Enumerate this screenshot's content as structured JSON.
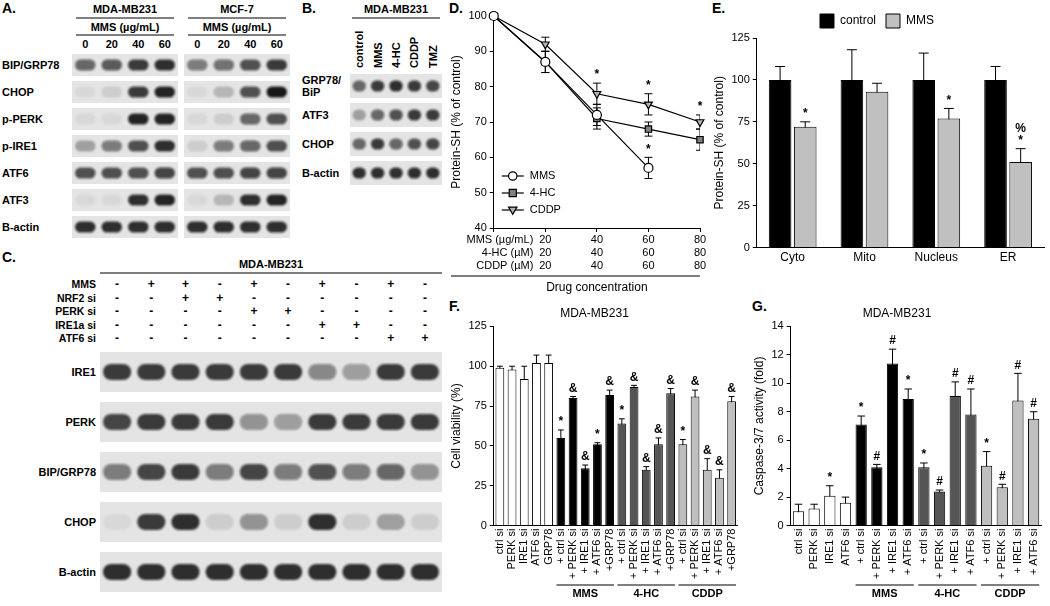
{
  "blots": [
    {
      "panel": "A.",
      "groups": [
        {
          "title": "MDA-MB231",
          "subtitle": "MMS (µg/mL)",
          "lanes": [
            "0",
            "20",
            "40",
            "60"
          ]
        },
        {
          "title": "MCF-7",
          "subtitle": "MMS (µg/mL)",
          "lanes": [
            "0",
            "20",
            "40",
            "60"
          ]
        }
      ],
      "rows": [
        {
          "name": "BIP/GRP78",
          "bands": [
            [
              0.6,
              0.65,
              0.8,
              0.85
            ],
            [
              0.5,
              0.55,
              0.7,
              0.8
            ]
          ]
        },
        {
          "name": "CHOP",
          "bands": [
            [
              0.05,
              0.1,
              0.8,
              0.9
            ],
            [
              0.05,
              0.2,
              0.7,
              0.95
            ]
          ]
        },
        {
          "name": "p-PERK",
          "bands": [
            [
              0.05,
              0.05,
              0.9,
              0.9
            ],
            [
              0.05,
              0.1,
              0.6,
              0.7
            ]
          ]
        },
        {
          "name": "p-IRE1",
          "bands": [
            [
              0.3,
              0.5,
              0.7,
              0.85
            ],
            [
              0.1,
              0.5,
              0.6,
              0.7
            ]
          ]
        },
        {
          "name": "ATF6",
          "bands": [
            [
              0.7,
              0.7,
              0.7,
              0.75
            ],
            [
              0.7,
              0.7,
              0.75,
              0.75
            ]
          ]
        },
        {
          "name": "ATF3",
          "bands": [
            [
              0.05,
              0.05,
              0.85,
              0.9
            ],
            [
              0.05,
              0.2,
              0.85,
              0.9
            ]
          ]
        },
        {
          "name": "B-actin",
          "bands": [
            [
              0.85,
              0.85,
              0.85,
              0.85
            ],
            [
              0.85,
              0.85,
              0.85,
              0.85
            ]
          ]
        }
      ]
    },
    {
      "panel": "B.",
      "title": "MDA-MB231",
      "lanes": [
        "control",
        "MMS",
        "4-HC",
        "CDDP",
        "TMZ"
      ],
      "rows": [
        {
          "name": "GRP78/BiP",
          "bands": [
            0.6,
            0.8,
            0.85,
            0.8,
            0.75
          ]
        },
        {
          "name": "ATF3",
          "bands": [
            0.3,
            0.6,
            0.7,
            0.8,
            0.8
          ]
        },
        {
          "name": "CHOP",
          "bands": [
            0.6,
            0.8,
            0.6,
            0.7,
            0.75
          ]
        },
        {
          "name": "B-actin",
          "bands": [
            0.85,
            0.85,
            0.85,
            0.85,
            0.85
          ]
        }
      ]
    },
    {
      "panel": "C.",
      "title": "MDA-MB231",
      "conditions": [
        {
          "name": "MMS",
          "marks": [
            "-",
            "+",
            "+",
            "-",
            "+",
            "-",
            "+",
            "-",
            "+",
            "-"
          ]
        },
        {
          "name": "NRF2 si",
          "marks": [
            "-",
            "-",
            "+",
            "+",
            "-",
            "-",
            "-",
            "-",
            "-",
            "-"
          ]
        },
        {
          "name": "PERK si",
          "marks": [
            "-",
            "-",
            "-",
            "-",
            "+",
            "+",
            "-",
            "-",
            "-",
            "-"
          ]
        },
        {
          "name": "IRE1a si",
          "marks": [
            "-",
            "-",
            "-",
            "-",
            "-",
            "-",
            "+",
            "+",
            "-",
            "-"
          ]
        },
        {
          "name": "ATF6 si",
          "marks": [
            "-",
            "-",
            "-",
            "-",
            "-",
            "-",
            "-",
            "-",
            "+",
            "+"
          ]
        }
      ],
      "rows": [
        {
          "name": "IRE1",
          "bands": [
            0.8,
            0.8,
            0.8,
            0.8,
            0.8,
            0.8,
            0.45,
            0.35,
            0.8,
            0.8
          ]
        },
        {
          "name": "PERK",
          "bands": [
            0.75,
            0.8,
            0.8,
            0.8,
            0.4,
            0.35,
            0.8,
            0.8,
            0.8,
            0.8
          ]
        },
        {
          "name": "BIP/GRP78",
          "bands": [
            0.5,
            0.75,
            0.8,
            0.5,
            0.75,
            0.5,
            0.7,
            0.5,
            0.6,
            0.4
          ]
        },
        {
          "name": "CHOP",
          "bands": [
            0.05,
            0.8,
            0.85,
            0.1,
            0.4,
            0.1,
            0.85,
            0.1,
            0.3,
            0.1
          ]
        },
        {
          "name": "B-actin",
          "bands": [
            0.85,
            0.85,
            0.85,
            0.85,
            0.85,
            0.85,
            0.85,
            0.85,
            0.85,
            0.85
          ]
        }
      ]
    }
  ],
  "chart_data": [
    {
      "type": "line",
      "panel": "D.",
      "y_label": "Protein-SH (% of control)",
      "x_label": "Drug concentration",
      "category_rows": [
        {
          "name": "MMS (µg/mL)",
          "categories": [
            null,
            "20",
            "40",
            "60",
            "80"
          ]
        },
        {
          "name": "4-HC (µM)",
          "categories": [
            null,
            "20",
            "40",
            "60",
            "80"
          ]
        },
        {
          "name": "CDDP (µM)",
          "categories": [
            null,
            "20",
            "40",
            "60",
            "80"
          ]
        }
      ],
      "series": [
        {
          "name": "MMS",
          "color": "#ffffff",
          "marker": "circle",
          "values": [
            100,
            87,
            72,
            57,
            null
          ],
          "errors": [
            null,
            3,
            3,
            3,
            null
          ],
          "marks": [
            null,
            null,
            null,
            "*",
            null
          ]
        },
        {
          "name": "4-HC",
          "color": "#808080",
          "marker": "square",
          "values": [
            100,
            87,
            71,
            68,
            65
          ],
          "errors": [
            null,
            3,
            3,
            2,
            3
          ]
        },
        {
          "name": "CDDP",
          "color": "#b3b3b3",
          "marker": "triangle_down",
          "values": [
            100,
            92,
            78,
            75,
            70
          ],
          "errors": [
            null,
            2,
            3,
            3,
            2
          ],
          "marks": [
            null,
            null,
            "*",
            "*",
            "*"
          ]
        }
      ],
      "ylim": [
        40,
        100
      ],
      "yticks": [
        40,
        50,
        60,
        70,
        80,
        90,
        100
      ],
      "grid": false,
      "legend": "lower left"
    },
    {
      "type": "bar",
      "panel": "E.",
      "y_label": "Protein-SH (% of control)",
      "categories": [
        "Cyto",
        "Mito",
        "Nucleus",
        "ER"
      ],
      "series": [
        {
          "name": "control",
          "color": "#000000",
          "values": [
            100,
            100,
            100,
            100
          ],
          "errors": [
            8,
            18,
            16,
            8
          ]
        },
        {
          "name": "MMS",
          "color": "#c0c0c0",
          "values": [
            72,
            93,
            77,
            51
          ],
          "errors": [
            3,
            5,
            6,
            8
          ],
          "marks": [
            "*",
            null,
            "*",
            [
              "%",
              "*"
            ]
          ]
        }
      ],
      "ylim": [
        0,
        125
      ],
      "yticks": [
        0,
        25,
        50,
        75,
        100,
        125
      ],
      "grid": false,
      "legend": "top"
    },
    {
      "type": "bar",
      "panel": "F.",
      "title": "MDA-MB231",
      "y_label": "Cell viability (%)",
      "categories": [
        "ctrl si",
        "PERK si",
        "IRE1 si",
        "ATF6 si",
        "GRP78",
        "+ ctrl si",
        "+ PERK si",
        "+ IRE1 si",
        "+ ATF6 si",
        "+GRP78",
        "+ ctrl si",
        "+ PERK si",
        "+ IRE1 si",
        "+ ATF6 si",
        "+GRP78",
        "+ ctrl si",
        "+ PERK si",
        "+ IRE1 si",
        "+ ATF6 si",
        "+GRP78"
      ],
      "groups": [
        null,
        null,
        null,
        null,
        null,
        "MMS",
        "MMS",
        "MMS",
        "MMS",
        "MMS",
        "4-HC",
        "4-HC",
        "4-HC",
        "4-HC",
        "4-HC",
        "CDDP",
        "CDDP",
        "CDDP",
        "CDDP",
        "CDDP"
      ],
      "values": [
        99,
        98,
        92,
        102,
        102,
        55,
        80,
        36,
        51,
        82,
        64,
        87,
        35,
        51,
        83,
        51,
        81,
        35,
        30,
        78
      ],
      "errors": [
        1,
        2,
        8,
        5,
        5,
        5,
        1,
        2,
        1,
        3,
        3,
        1,
        2,
        4,
        3,
        3,
        4,
        7,
        5,
        3
      ],
      "marks": [
        null,
        null,
        null,
        null,
        null,
        "*",
        "&",
        "&",
        "*",
        "&",
        "*",
        "&",
        "&",
        "&",
        "&",
        "*",
        "&",
        "&",
        "&",
        "&"
      ],
      "colors": [
        "#ffffff",
        "#ffffff",
        "#ffffff",
        "#ffffff",
        "#ffffff",
        "#000000",
        "#000000",
        "#000000",
        "#000000",
        "#000000",
        "#555555",
        "#555555",
        "#555555",
        "#555555",
        "#555555",
        "#bfbfbf",
        "#bfbfbf",
        "#bfbfbf",
        "#bfbfbf",
        "#bfbfbf"
      ],
      "ylim": [
        0,
        125
      ],
      "yticks": [
        0,
        25,
        50,
        75,
        100,
        125
      ],
      "grid": false
    },
    {
      "type": "bar",
      "panel": "G.",
      "title": "MDA-MB231",
      "y_label": "Caspase-3/7 activity (fold)",
      "categories": [
        "ctrl si",
        "PERK si",
        "IRE1 si",
        "ATF6 si",
        "+ ctrl si",
        "+ PERK si",
        "+ IRE1 si",
        "+ ATF6 si",
        "+ ctrl si",
        "+ PERK si",
        "+ IRE1 si",
        "+ ATF6 si",
        "+ ctrl si",
        "+ PERK si",
        "+ IRE1 si",
        "+ ATF6 si"
      ],
      "groups": [
        null,
        null,
        null,
        null,
        "MMS",
        "MMS",
        "MMS",
        "MMS",
        "4-HC",
        "4-HC",
        "4-HC",
        "4-HC",
        "CDDP",
        "CDDP",
        "CDDP",
        "CDDP"
      ],
      "values": [
        1,
        1.2,
        2.1,
        1.6,
        7.1,
        4.1,
        11.4,
        8.9,
        4.1,
        2.4,
        9.1,
        7.8,
        4.2,
        2.7,
        8.8,
        7.5
      ],
      "errors": [
        0.5,
        0.3,
        0.7,
        0.4,
        0.6,
        0.2,
        1,
        0.7,
        0.3,
        0.1,
        1,
        1.8,
        1,
        0.2,
        1.9,
        0.5
      ],
      "marks": [
        null,
        null,
        "*",
        null,
        "*",
        "#",
        "#",
        "*",
        "*",
        "#",
        "#",
        "#",
        "*",
        "#",
        "#",
        "#"
      ],
      "colors": [
        "#ffffff",
        "#ffffff",
        "#ffffff",
        "#ffffff",
        "#000000",
        "#000000",
        "#000000",
        "#000000",
        "#555555",
        "#555555",
        "#555555",
        "#555555",
        "#bfbfbf",
        "#bfbfbf",
        "#bfbfbf",
        "#bfbfbf"
      ],
      "ylim": [
        0,
        14
      ],
      "yticks": [
        0,
        2,
        4,
        6,
        8,
        10,
        12,
        14
      ],
      "grid": false
    }
  ]
}
